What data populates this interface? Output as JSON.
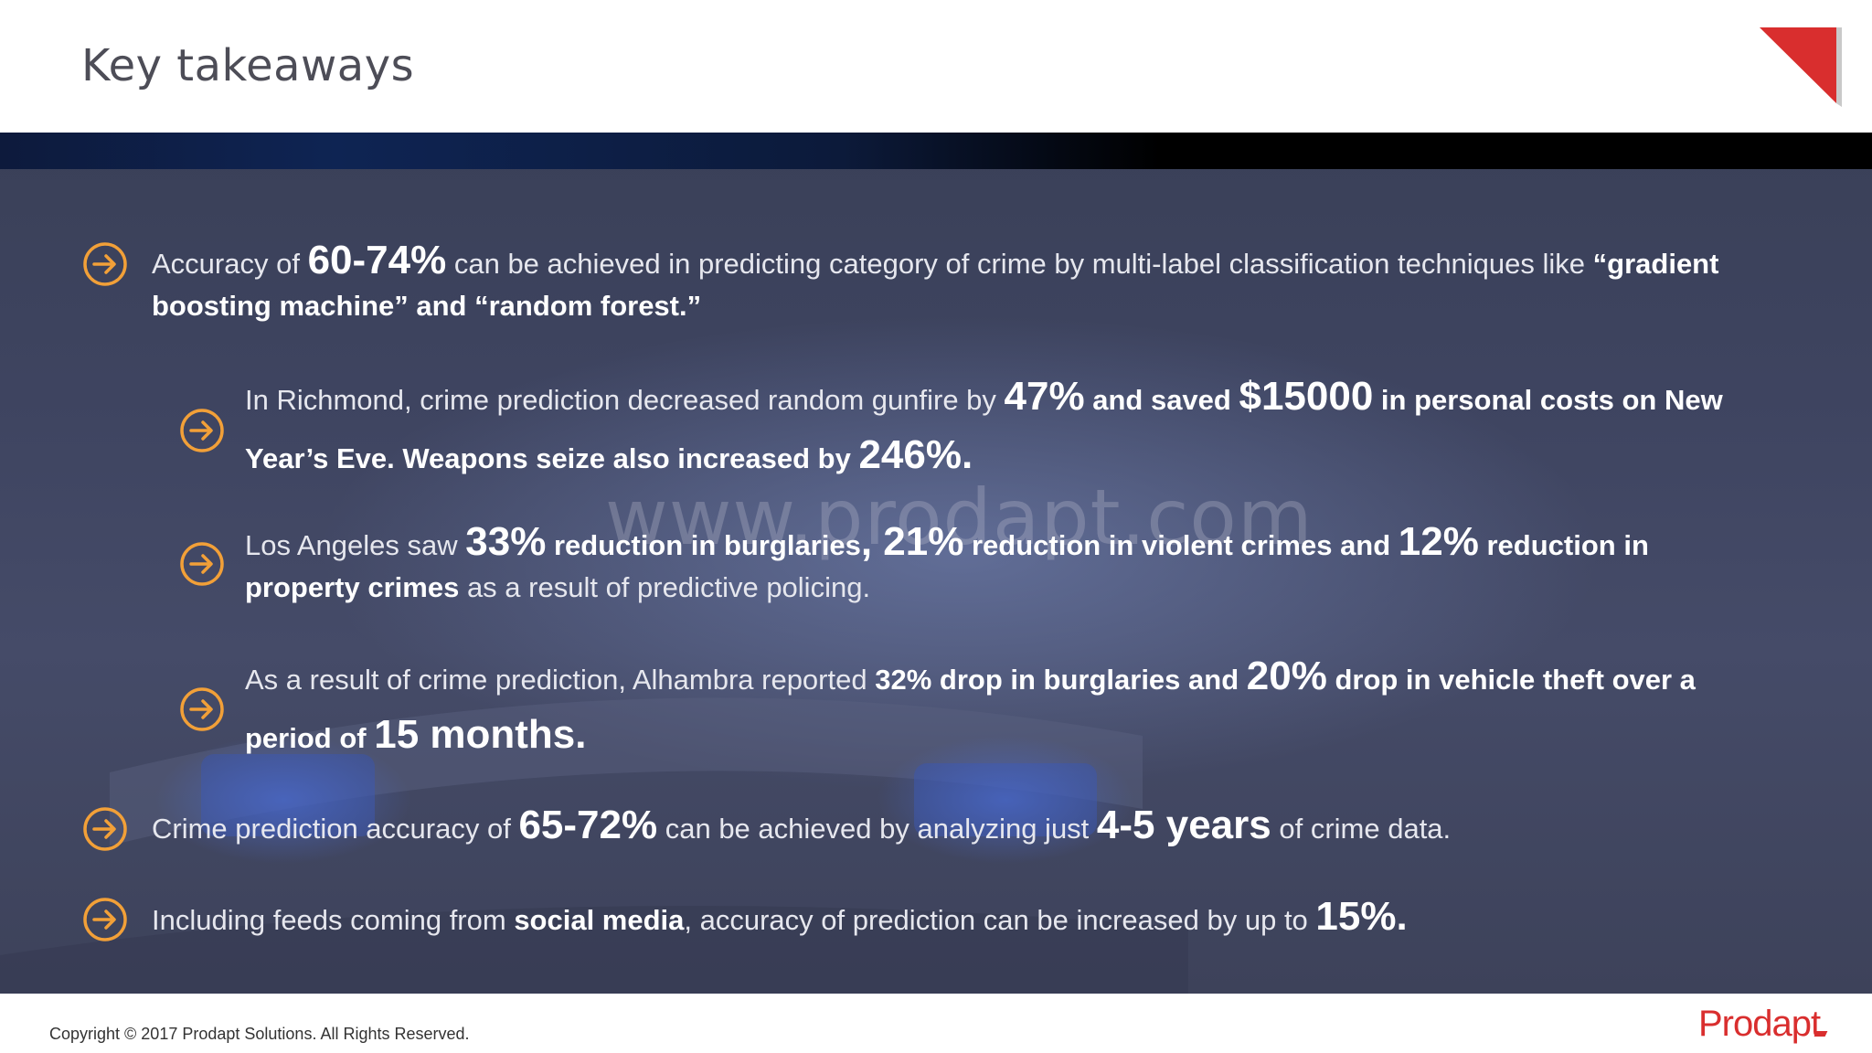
{
  "title": "Key takeaways",
  "watermark": "www.prodapt.com",
  "items": [
    {
      "p1": "Accuracy of ",
      "b1": "60-74%",
      "p2": " can be achieved in predicting category of crime by multi-label classification techniques like ",
      "s1": "“gradient boosting machine” and “random forest.”"
    },
    {
      "p1": "In Richmond, crime prediction decreased random gunfire by ",
      "b1": "47%",
      "s1": " and saved ",
      "b2": "$15000",
      "s2": " in personal costs on New Year’s Eve. Weapons seize also increased by ",
      "b3": "246%."
    },
    {
      "p1": "Los Angeles saw ",
      "b1": "33%",
      "s1": " reduction in burglaries",
      "b2": ", 21%",
      "s2": " reduction in violent crimes and ",
      "b3": "12%",
      "s3": " reduction in property crimes",
      "p2": " as a result of predictive policing."
    },
    {
      "p1": "As a result of crime prediction, Alhambra reported ",
      "s1": "32% drop in burglaries and ",
      "b1": "20%",
      "s2": " drop in vehicle theft over a period of ",
      "b2": "15 months."
    },
    {
      "p1": "Crime prediction accuracy of ",
      "b1": "65-72%",
      "p2": " can be achieved by analyzing just ",
      "b2": "4-5 years",
      "p3": " of crime data."
    },
    {
      "p1": "Including feeds coming from ",
      "s1": "social media",
      "p2": ", accuracy of prediction can be increased by up to ",
      "b1": "15%."
    }
  ],
  "footer": {
    "copyright": "Copyright © 2017 Prodapt Solutions. All Rights Reserved.",
    "brand": "Prodapt"
  },
  "colors": {
    "accent": "#f2a038",
    "brand": "#d92e2e",
    "text": "#e6e7ee"
  }
}
